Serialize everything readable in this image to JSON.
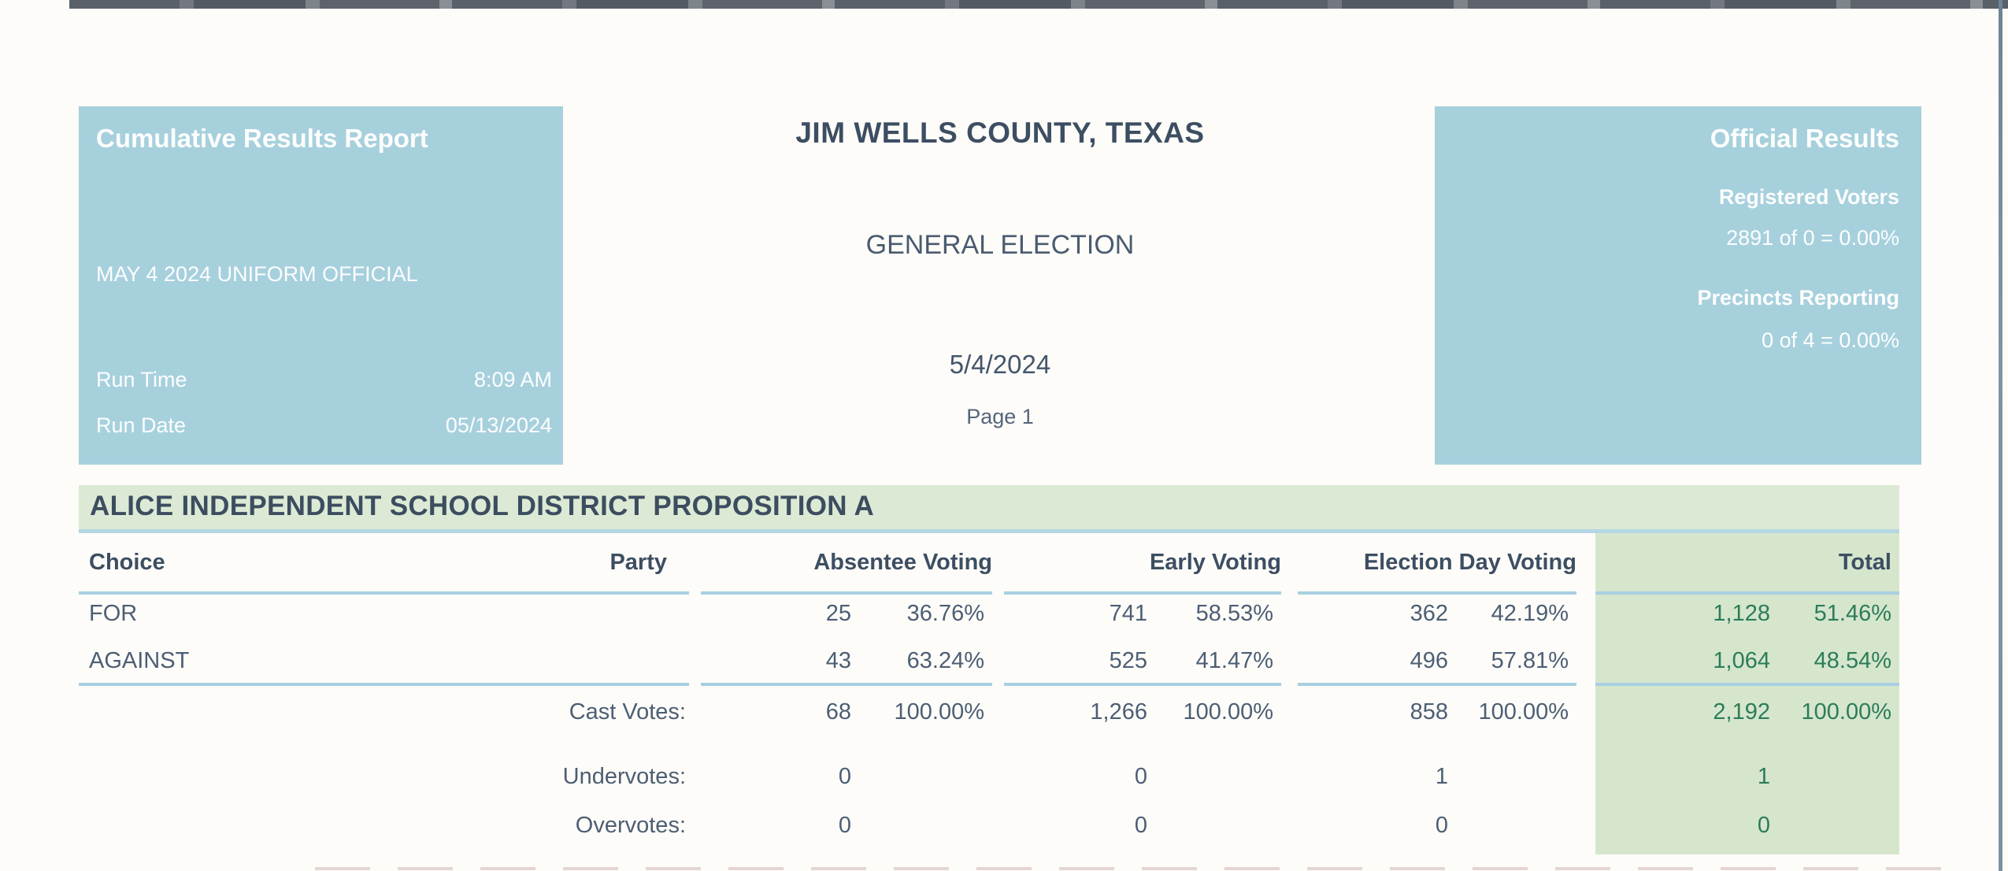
{
  "report": {
    "left_box": {
      "title": "Cumulative Results Report",
      "subtitle": "MAY 4 2024 UNIFORM OFFICIAL",
      "run_time_label": "Run Time",
      "run_time_value": "8:09 AM",
      "run_date_label": "Run Date",
      "run_date_value": "05/13/2024"
    },
    "center": {
      "county": "JIM WELLS COUNTY, TEXAS",
      "election": "GENERAL ELECTION",
      "date": "5/4/2024",
      "page": "Page 1"
    },
    "right_box": {
      "title": "Official Results",
      "registered_label": "Registered Voters",
      "registered_value": "2891 of 0 = 0.00%",
      "precincts_label": "Precincts Reporting",
      "precincts_value": "0 of 4 = 0.00%"
    }
  },
  "contest": {
    "title": "ALICE INDEPENDENT SCHOOL DISTRICT PROPOSITION A",
    "headers": {
      "choice": "Choice",
      "party": "Party",
      "absentee": "Absentee Voting",
      "early": "Early Voting",
      "election_day": "Election Day Voting",
      "total": "Total"
    },
    "rows": [
      {
        "choice": "FOR",
        "party": "",
        "absentee_votes": "25",
        "absentee_pct": "36.76%",
        "early_votes": "741",
        "early_pct": "58.53%",
        "ed_votes": "362",
        "ed_pct": "42.19%",
        "total_votes": "1,128",
        "total_pct": "51.46%"
      },
      {
        "choice": "AGAINST",
        "party": "",
        "absentee_votes": "43",
        "absentee_pct": "63.24%",
        "early_votes": "525",
        "early_pct": "41.47%",
        "ed_votes": "496",
        "ed_pct": "57.81%",
        "total_votes": "1,064",
        "total_pct": "48.54%"
      }
    ],
    "cast_votes": {
      "label": "Cast Votes:",
      "absentee_votes": "68",
      "absentee_pct": "100.00%",
      "early_votes": "1,266",
      "early_pct": "100.00%",
      "ed_votes": "858",
      "ed_pct": "100.00%",
      "total_votes": "2,192",
      "total_pct": "100.00%"
    },
    "undervotes": {
      "label": "Undervotes:",
      "absentee": "0",
      "early": "0",
      "ed": "1",
      "total": "1"
    },
    "overvotes": {
      "label": "Overvotes:",
      "absentee": "0",
      "early": "0",
      "ed": "0",
      "total": "0"
    }
  },
  "colors": {
    "panel_blue": "#a7d0dd",
    "banner_green": "#dcead5",
    "total_column_green": "#d5e6cd",
    "total_text_green": "#2c7c59",
    "heading_slate": "#3d4e62",
    "rule_blue": "#a9cfe1"
  }
}
